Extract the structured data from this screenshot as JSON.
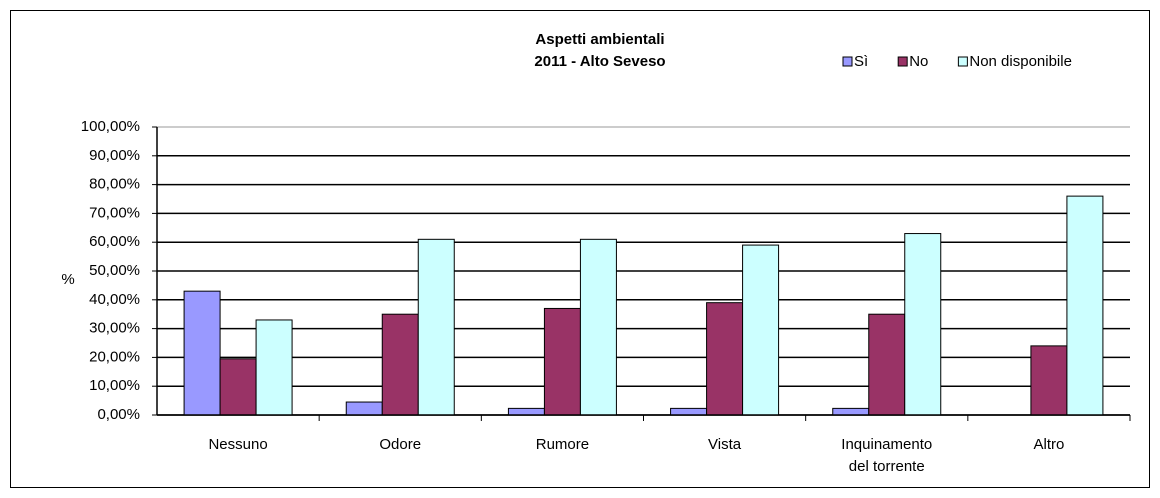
{
  "chart_data": {
    "type": "bar",
    "title": "Aspetti ambientali",
    "subtitle": "2011 - Alto Seveso",
    "y_label": "%",
    "categories": [
      "Nessuno",
      "Odore",
      "Rumore",
      "Vista",
      "Inquinamento\ndel torrente",
      "Altro"
    ],
    "series": [
      {
        "name": "Sì",
        "color": "#9999ff",
        "values": [
          43,
          4.5,
          2.3,
          2.3,
          2.3,
          0
        ]
      },
      {
        "name": "No",
        "color": "#993366",
        "values": [
          19.5,
          35,
          37,
          39,
          35,
          24
        ]
      },
      {
        "name": "Non disponibile",
        "color": "#ccffff",
        "values": [
          33,
          61,
          61,
          59,
          63,
          76
        ]
      }
    ],
    "ylim": [
      0,
      100
    ],
    "yticks": [
      {
        "value": 0,
        "label": "0,00%"
      },
      {
        "value": 10,
        "label": "10,00%"
      },
      {
        "value": 20,
        "label": "20,00%"
      },
      {
        "value": 30,
        "label": "30,00%"
      },
      {
        "value": 40,
        "label": "40,00%"
      },
      {
        "value": 50,
        "label": "50,00%"
      },
      {
        "value": 60,
        "label": "60,00%"
      },
      {
        "value": 70,
        "label": "70,00%"
      },
      {
        "value": 80,
        "label": "80,00%"
      },
      {
        "value": 90,
        "label": "90,00%"
      },
      {
        "value": 100,
        "label": "100,00%"
      }
    ],
    "grid": true,
    "legend": "top-right"
  }
}
